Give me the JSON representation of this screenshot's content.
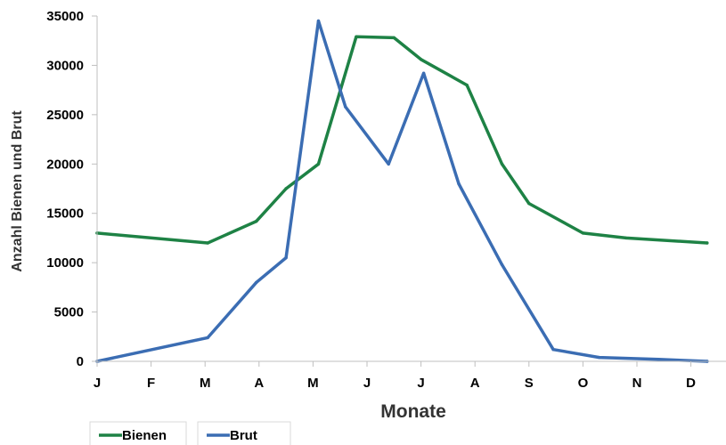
{
  "chart_data": {
    "type": "line",
    "title": "",
    "xlabel": "Monate",
    "ylabel": "Anzahl Bienen und Brut",
    "categories": [
      "J",
      "F",
      "M",
      "A",
      "M",
      "J",
      "J",
      "A",
      "S",
      "O",
      "N",
      "D"
    ],
    "ylim": [
      0,
      35000
    ],
    "yticks": [
      0,
      5000,
      10000,
      15000,
      20000,
      25000,
      30000,
      35000
    ],
    "grid": false,
    "legend": "bottom-left",
    "series": [
      {
        "name": "Bienen",
        "color": "#1e8245",
        "x": [
          0,
          2.05,
          2.95,
          3.5,
          4.1,
          4.8,
          5.5,
          6.0,
          6.85,
          7.5,
          8.0,
          9.0,
          9.8,
          11.3
        ],
        "values": [
          13000,
          12000,
          14200,
          17500,
          20000,
          32900,
          32800,
          30600,
          28000,
          20000,
          16000,
          13000,
          12500,
          12000
        ]
      },
      {
        "name": "Brut",
        "color": "#3b6db3",
        "x": [
          0,
          2.05,
          2.95,
          3.5,
          4.1,
          4.6,
          5.4,
          6.05,
          6.7,
          7.5,
          8.45,
          9.3,
          10.4,
          11.3
        ],
        "values": [
          0,
          2400,
          8000,
          10500,
          34500,
          25800,
          20000,
          29200,
          18000,
          9800,
          1200,
          400,
          200,
          0
        ]
      }
    ]
  }
}
